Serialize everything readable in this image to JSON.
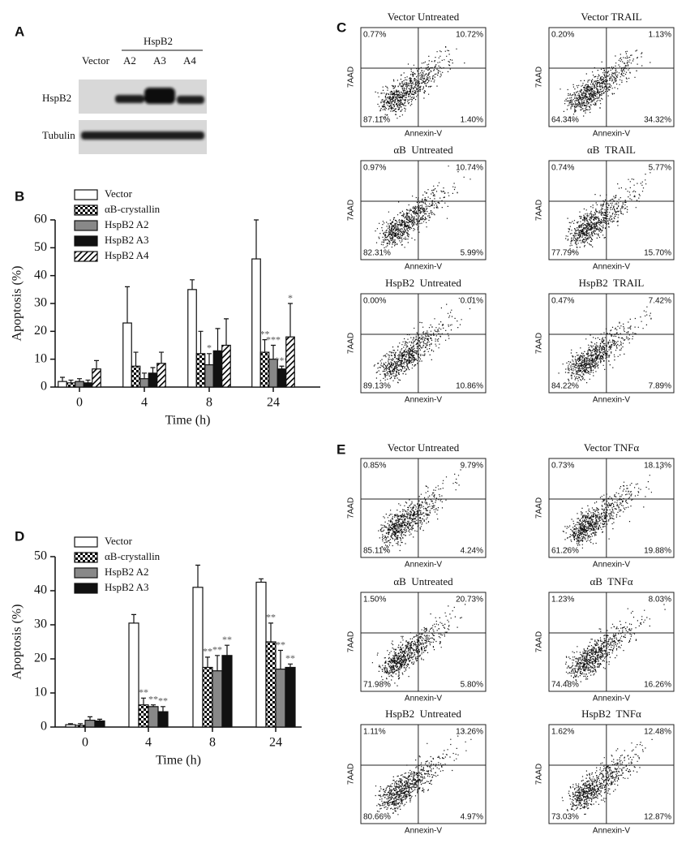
{
  "chart_data": [
    {
      "type": "bar",
      "panel_label": "B",
      "y_label": "Apoptosis (%)",
      "x_label": "Time (h)",
      "categories": [
        "0",
        "4",
        "8",
        "24"
      ],
      "ylim": [
        0,
        60
      ],
      "yticks": [
        0,
        10,
        20,
        30,
        40,
        50,
        60
      ],
      "series": [
        {
          "name": "Vector",
          "color": "#ffffff",
          "pattern": "solid",
          "values": [
            2,
            23,
            35,
            46
          ],
          "errors": [
            1.5,
            13,
            3.5,
            14
          ],
          "significance": [
            null,
            null,
            null,
            null
          ]
        },
        {
          "name": "αB-crystallin",
          "color": "#000000",
          "pattern": "checker",
          "values": [
            1.5,
            7.5,
            12,
            12.5
          ],
          "errors": [
            1,
            5,
            8,
            4.5
          ],
          "significance": [
            null,
            null,
            null,
            "**"
          ]
        },
        {
          "name": "HspB2 A2",
          "color": "#888888",
          "pattern": "solid",
          "values": [
            2,
            3,
            8,
            10
          ],
          "errors": [
            1,
            2,
            4,
            5
          ],
          "significance": [
            null,
            null,
            "*",
            "***"
          ]
        },
        {
          "name": "HspB2 A3",
          "color": "#111111",
          "pattern": "solid",
          "values": [
            1.5,
            5,
            13,
            6.5
          ],
          "errors": [
            1,
            2,
            8,
            1
          ],
          "significance": [
            null,
            null,
            null,
            "***"
          ]
        },
        {
          "name": "HspB2 A4",
          "color": "#000000",
          "pattern": "hatch",
          "values": [
            6.5,
            8.5,
            15,
            18
          ],
          "errors": [
            3,
            4,
            9.5,
            12
          ],
          "significance": [
            null,
            null,
            null,
            "*"
          ]
        }
      ]
    },
    {
      "type": "bar",
      "panel_label": "D",
      "y_label": "Apoptosis (%)",
      "x_label": "Time (h)",
      "categories": [
        "0",
        "4",
        "8",
        "24"
      ],
      "ylim": [
        0,
        50
      ],
      "yticks": [
        0,
        10,
        20,
        30,
        40,
        50
      ],
      "series": [
        {
          "name": "Vector",
          "color": "#ffffff",
          "pattern": "solid",
          "values": [
            0.7,
            30.5,
            41,
            42.5
          ],
          "errors": [
            0.3,
            2.5,
            6.5,
            1
          ],
          "significance": [
            null,
            null,
            null,
            null
          ]
        },
        {
          "name": "αB-crystallin",
          "color": "#000000",
          "pattern": "checker",
          "values": [
            0.5,
            6.5,
            17.5,
            25
          ],
          "errors": [
            0.5,
            2,
            3,
            5.5
          ],
          "significance": [
            null,
            "**",
            "**",
            "**"
          ]
        },
        {
          "name": "HspB2 A2",
          "color": "#888888",
          "pattern": "solid",
          "values": [
            2,
            6,
            16.5,
            17
          ],
          "errors": [
            1,
            0.5,
            4.5,
            5.5
          ],
          "significance": [
            null,
            "**",
            "**",
            "**"
          ]
        },
        {
          "name": "HspB2 A3",
          "color": "#111111",
          "pattern": "solid",
          "values": [
            1.8,
            4.5,
            21,
            17.5
          ],
          "errors": [
            0.5,
            1.5,
            3,
            1
          ],
          "significance": [
            null,
            "**",
            "**",
            "**"
          ]
        }
      ]
    }
  ],
  "panel_a": {
    "label": "A",
    "header": "HspB2",
    "lanes": [
      "Vector",
      "A2",
      "A3",
      "A4"
    ],
    "rows": [
      "HspB2",
      "Tubulin"
    ]
  },
  "panel_c": {
    "label": "C",
    "y_label": "7AAD",
    "x_label": "Annexin-V",
    "plots": [
      {
        "title": "Vector Untreated",
        "quadrants": [
          "0.77%",
          "10.72%",
          "87.11%",
          "1.40%"
        ]
      },
      {
        "title": "Vector TRAIL",
        "quadrants": [
          "0.20%",
          "1.13%",
          "64.34%",
          "34.32%"
        ]
      },
      {
        "title": "αB  Untreated",
        "quadrants": [
          "0.97%",
          "10.74%",
          "82.31%",
          "5.99%"
        ]
      },
      {
        "title": "αB  TRAIL",
        "quadrants": [
          "0.74%",
          "5.77%",
          "77.79%",
          "15.70%"
        ]
      },
      {
        "title": "HspB2  Untreated",
        "quadrants": [
          "0.00%",
          "0.01%",
          "89.13%",
          "10.86%"
        ]
      },
      {
        "title": "HspB2  TRAIL",
        "quadrants": [
          "0.47%",
          "7.42%",
          "84.22%",
          "7.89%"
        ]
      }
    ]
  },
  "panel_e": {
    "label": "E",
    "y_label": "7AAD",
    "x_label": "Annexin-V",
    "plots": [
      {
        "title": "Vector Untreated",
        "quadrants": [
          "0.85%",
          "9.79%",
          "85.11%",
          "4.24%"
        ]
      },
      {
        "title": "Vector TNFα",
        "quadrants": [
          "0.73%",
          "18.13%",
          "61.26%",
          "19.88%"
        ]
      },
      {
        "title": "αB  Untreated",
        "quadrants": [
          "1.50%",
          "20.73%",
          "71.98%",
          "5.80%"
        ]
      },
      {
        "title": "αB  TNFα",
        "quadrants": [
          "1.23%",
          "8.03%",
          "74.48%",
          "16.26%"
        ]
      },
      {
        "title": "HspB2  Untreated",
        "quadrants": [
          "1.11%",
          "13.26%",
          "80.66%",
          "4.97%"
        ]
      },
      {
        "title": "HspB2  TNFα",
        "quadrants": [
          "1.62%",
          "12.48%",
          "73.03%",
          "12.87%"
        ]
      }
    ]
  }
}
